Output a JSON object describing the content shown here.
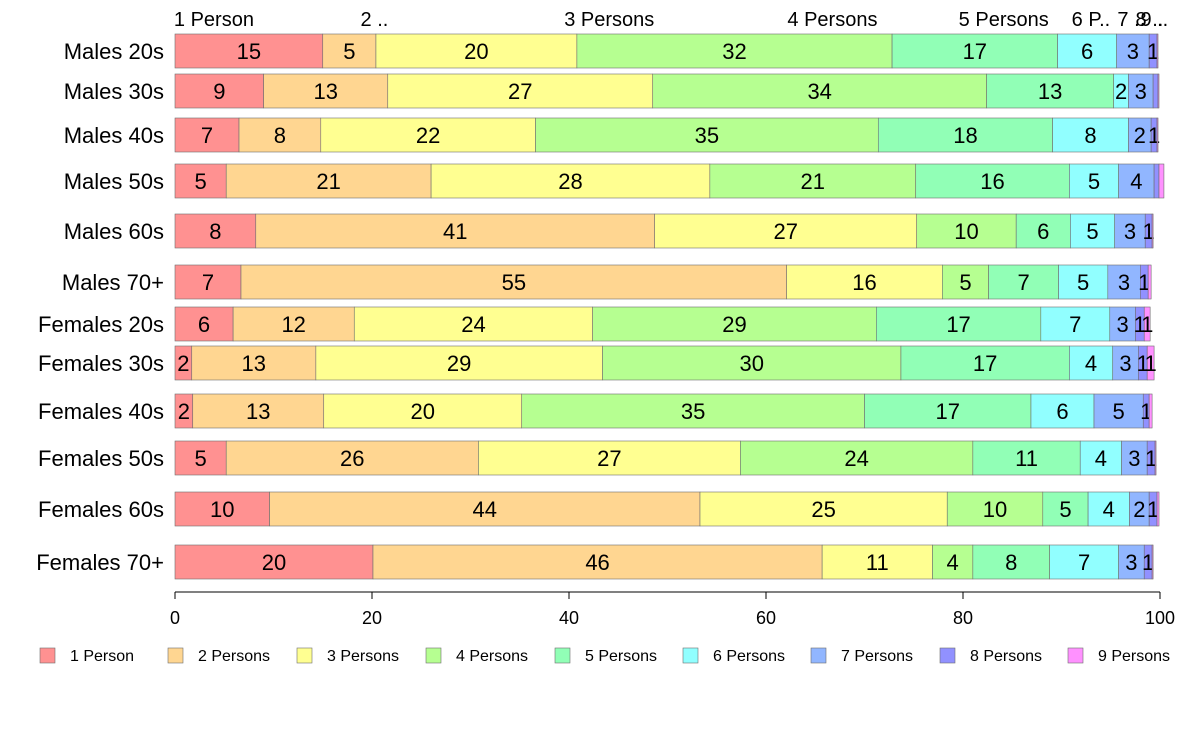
{
  "chart_data": {
    "type": "bar",
    "orientation": "horizontal",
    "stacked": true,
    "categories": [
      "Males 20s",
      "Males 30s",
      "Males 40s",
      "Males 50s",
      "Males 60s",
      "Males 70+",
      "Females 20s",
      "Females 30s",
      "Females 40s",
      "Females 50s",
      "Females 60s",
      "Females 70+"
    ],
    "top_labels": [
      "1 Person",
      "2 ..",
      "3 Persons",
      "4 Persons",
      "5 Persons",
      "6 P..",
      "7 ..",
      "8 ..",
      "9 .."
    ],
    "series": [
      {
        "name": "1 Person",
        "color": "#ff9191",
        "values": [
          15,
          9,
          6.5,
          5.2,
          8.2,
          6.7,
          5.9,
          1.7,
          1.8,
          5.2,
          9.6,
          20.1
        ]
      },
      {
        "name": "2 Persons",
        "color": "#ffd691",
        "values": [
          5.4,
          12.6,
          8.3,
          20.8,
          40.5,
          55.4,
          12.3,
          12.6,
          13.3,
          25.6,
          43.7,
          45.6
        ]
      },
      {
        "name": "3 Persons",
        "color": "#ffff91",
        "values": [
          20.4,
          26.9,
          21.8,
          28.3,
          26.6,
          15.8,
          24.2,
          29.1,
          20.1,
          26.6,
          25.1,
          11.2
        ]
      },
      {
        "name": "4 Persons",
        "color": "#b6ff91",
        "values": [
          32.0,
          33.9,
          34.8,
          20.9,
          10.1,
          4.7,
          28.8,
          30.3,
          34.8,
          23.6,
          9.7,
          4.1
        ]
      },
      {
        "name": "5 Persons",
        "color": "#91ffb6",
        "values": [
          16.8,
          12.9,
          17.7,
          15.6,
          5.5,
          7.1,
          16.7,
          17.1,
          16.9,
          10.9,
          4.6,
          7.8
        ]
      },
      {
        "name": "6 Persons",
        "color": "#91ffff",
        "values": [
          6.0,
          1.5,
          7.7,
          5.0,
          4.5,
          5.0,
          7.0,
          4.4,
          6.4,
          4.2,
          4.2,
          7.0
        ]
      },
      {
        "name": "7 Persons",
        "color": "#91b6ff",
        "values": [
          3.3,
          2.5,
          2.3,
          3.6,
          3.1,
          3.3,
          2.6,
          2.6,
          5.0,
          2.6,
          2.0,
          2.6
        ]
      },
      {
        "name": "8 Persons",
        "color": "#9191ff",
        "values": [
          0.8,
          0.5,
          0.6,
          0.5,
          0.7,
          0.8,
          0.9,
          0.9,
          0.6,
          0.8,
          0.8,
          0.8
        ]
      },
      {
        "name": "9 Persons",
        "color": "#ff91ff",
        "values": [
          0.1,
          0.1,
          0.1,
          0.5,
          0.1,
          0.3,
          0.6,
          0.7,
          0.3,
          0.1,
          0.2,
          0.1
        ]
      }
    ],
    "x_ticks": [
      "0",
      "20",
      "40",
      "60",
      "80",
      "100"
    ],
    "xlim": [
      0,
      100
    ],
    "legend": "bottom",
    "grid": false
  }
}
